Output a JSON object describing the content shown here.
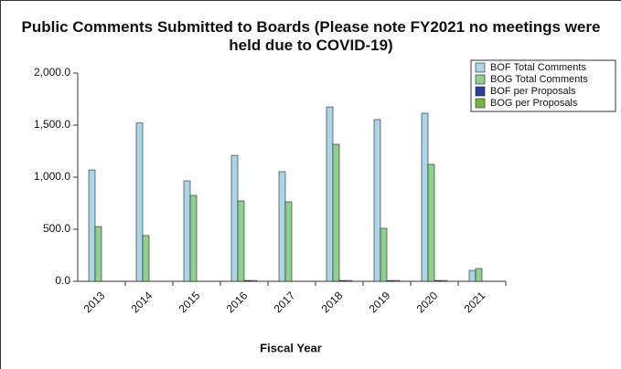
{
  "chart_data": {
    "type": "bar",
    "title": "Public Comments Submitted to Boards (Please note FY2021 no meetings were held due to COVID-19)",
    "xlabel": "Fiscal Year",
    "categories": [
      "2013",
      "2014",
      "2015",
      "2016",
      "2017",
      "2018",
      "2019",
      "2020",
      "2021"
    ],
    "series": [
      {
        "name": "BOF Total Comments",
        "color": "#a9d5e6",
        "values": [
          1070,
          1520,
          965,
          1210,
          1053,
          1675,
          1553,
          1614,
          105
        ]
      },
      {
        "name": "BOG Total Comments",
        "color": "#90cf8c",
        "values": [
          526,
          439,
          825,
          772,
          763,
          1316,
          509,
          1123,
          123
        ]
      },
      {
        "name": "BOF per Proposals",
        "color": "#2c3f9f",
        "values": [
          0,
          0,
          0,
          8,
          0,
          8,
          8,
          8,
          0
        ]
      },
      {
        "name": "BOG per Proposals",
        "color": "#6cbd3b",
        "values": [
          0,
          0,
          0,
          8,
          0,
          8,
          8,
          8,
          0
        ]
      }
    ],
    "ylim": [
      0,
      2000
    ],
    "yticks": [
      {
        "value": 0,
        "label": "0.0"
      },
      {
        "value": 500,
        "label": "500.0"
      },
      {
        "value": 1000,
        "label": "1,000.0"
      },
      {
        "value": 1500,
        "label": "1,500.0"
      },
      {
        "value": 2000,
        "label": "2,000.0"
      }
    ],
    "legend": "upper right"
  }
}
